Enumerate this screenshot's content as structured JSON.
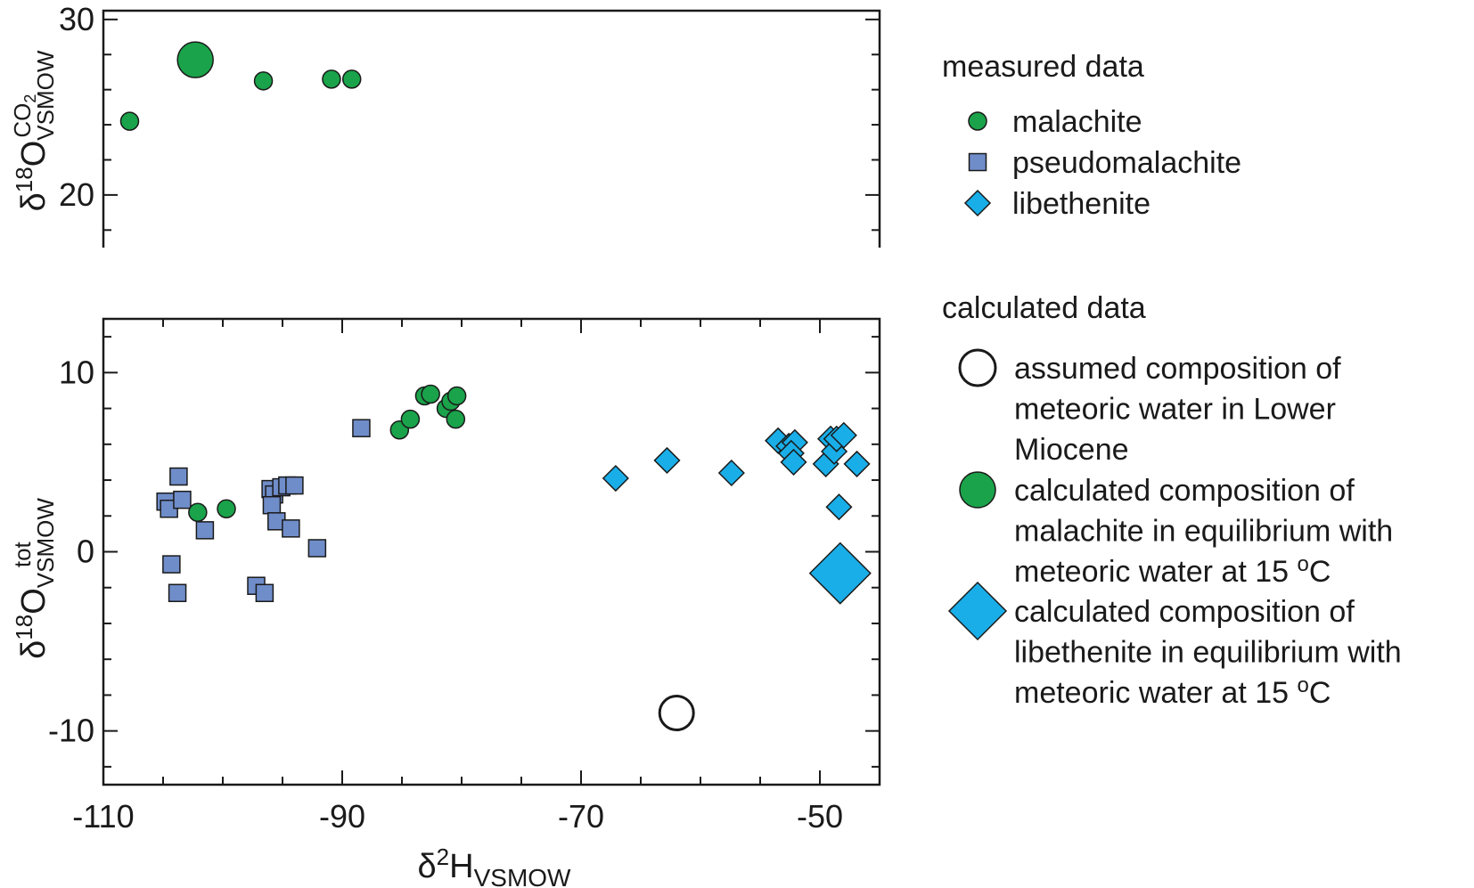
{
  "chart_data": {
    "type": "scatter",
    "colors": {
      "malachite": "#1aa34a",
      "pseudomalachite": "#6f8dc9",
      "libethenite": "#19aee8",
      "outline": "#1a1a1a",
      "open": "#ffffff"
    },
    "x_axis": {
      "label_base": "δ",
      "label_sup": "2",
      "label_main": "H",
      "label_sub": "VSMOW",
      "xlim": [
        -110,
        -45
      ],
      "ticks": [
        "-110",
        "-90",
        "-70",
        "-50"
      ]
    },
    "panels": [
      {
        "name": "measured-co2",
        "ylabel_base": "δ",
        "ylabel_sup": "18",
        "ylabel_main": "O",
        "ylabel_sub": "VSMOW",
        "ylabel_sup2": "CO2",
        "ylim": [
          17,
          30.5
        ],
        "ticks": [
          "20",
          "30"
        ],
        "series": [
          {
            "key": "malachite",
            "shape": "circle",
            "points": [
              {
                "x": -107.8,
                "y": 24.2,
                "size": "small"
              },
              {
                "x": -102.3,
                "y": 27.7,
                "size": "large"
              },
              {
                "x": -96.6,
                "y": 26.5,
                "size": "small"
              },
              {
                "x": -90.9,
                "y": 26.6,
                "size": "small"
              },
              {
                "x": -89.2,
                "y": 26.6,
                "size": "small"
              }
            ]
          }
        ]
      },
      {
        "name": "total",
        "ylabel_base": "δ",
        "ylabel_sup": "18",
        "ylabel_main": "O",
        "ylabel_sub": "VSMOW",
        "ylabel_sup2": "tot",
        "ylim": [
          -13,
          13
        ],
        "ticks": [
          "-10",
          "0",
          "10"
        ],
        "series": [
          {
            "key": "pseudomalachite",
            "shape": "square",
            "points": [
              {
                "x": -104.8,
                "y": 2.8
              },
              {
                "x": -104.5,
                "y": 2.4
              },
              {
                "x": -103.4,
                "y": 2.9
              },
              {
                "x": -103.7,
                "y": 4.2
              },
              {
                "x": -104.3,
                "y": -0.7
              },
              {
                "x": -103.8,
                "y": -2.3
              },
              {
                "x": -101.5,
                "y": 1.2
              },
              {
                "x": -97.2,
                "y": -1.9
              },
              {
                "x": -96.5,
                "y": -2.3
              },
              {
                "x": -96.0,
                "y": 3.5
              },
              {
                "x": -95.7,
                "y": 3.2
              },
              {
                "x": -95.9,
                "y": 2.6
              },
              {
                "x": -95.5,
                "y": 1.7
              },
              {
                "x": -95.1,
                "y": 3.6
              },
              {
                "x": -94.6,
                "y": 3.7
              },
              {
                "x": -94.0,
                "y": 3.7
              },
              {
                "x": -94.3,
                "y": 1.3
              },
              {
                "x": -92.1,
                "y": 0.2
              },
              {
                "x": -88.4,
                "y": 6.9
              }
            ]
          },
          {
            "key": "malachite",
            "shape": "circle",
            "points": [
              {
                "x": -102.1,
                "y": 2.2,
                "size": "small"
              },
              {
                "x": -99.7,
                "y": 2.4,
                "size": "small"
              },
              {
                "x": -85.2,
                "y": 6.8,
                "size": "small"
              },
              {
                "x": -84.3,
                "y": 7.4,
                "size": "small"
              },
              {
                "x": -83.1,
                "y": 8.7,
                "size": "small"
              },
              {
                "x": -82.6,
                "y": 8.8,
                "size": "small"
              },
              {
                "x": -81.3,
                "y": 8.0,
                "size": "small"
              },
              {
                "x": -80.9,
                "y": 8.4,
                "size": "small"
              },
              {
                "x": -80.4,
                "y": 8.7,
                "size": "small"
              },
              {
                "x": -80.5,
                "y": 7.4,
                "size": "small"
              }
            ]
          },
          {
            "key": "libethenite",
            "shape": "diamond",
            "points": [
              {
                "x": -67.1,
                "y": 4.1,
                "size": "small"
              },
              {
                "x": -62.8,
                "y": 5.1,
                "size": "small"
              },
              {
                "x": -57.4,
                "y": 4.4,
                "size": "small"
              },
              {
                "x": -53.5,
                "y": 6.2,
                "size": "small"
              },
              {
                "x": -52.6,
                "y": 5.9,
                "size": "small"
              },
              {
                "x": -52.1,
                "y": 6.1,
                "size": "small"
              },
              {
                "x": -52.4,
                "y": 5.5,
                "size": "small"
              },
              {
                "x": -52.2,
                "y": 5.0,
                "size": "small"
              },
              {
                "x": -49.5,
                "y": 4.9,
                "size": "small"
              },
              {
                "x": -49.1,
                "y": 6.3,
                "size": "small"
              },
              {
                "x": -48.8,
                "y": 5.6,
                "size": "small"
              },
              {
                "x": -48.6,
                "y": 6.3,
                "size": "small"
              },
              {
                "x": -48.0,
                "y": 6.5,
                "size": "small"
              },
              {
                "x": -46.9,
                "y": 4.9,
                "size": "small"
              },
              {
                "x": -48.4,
                "y": 2.5,
                "size": "small"
              },
              {
                "x": -48.3,
                "y": -1.2,
                "size": "large"
              }
            ]
          },
          {
            "key": "meteoric",
            "shape": "open-circle",
            "points": [
              {
                "x": -62.0,
                "y": -9.0,
                "size": "large"
              }
            ]
          }
        ]
      }
    ],
    "legend": {
      "placement": "right",
      "measured_title": "measured data",
      "measured": [
        {
          "key": "malachite",
          "shape": "circle",
          "label": "malachite"
        },
        {
          "key": "pseudomalachite",
          "shape": "square",
          "label": "pseudomalachite"
        },
        {
          "key": "libethenite",
          "shape": "diamond",
          "label": "libethenite"
        }
      ],
      "calculated_title": "calculated data",
      "calculated": [
        {
          "key": "meteoric",
          "shape": "open-circle",
          "lines": [
            "assumed composition of",
            "meteoric water in Lower",
            "Miocene"
          ]
        },
        {
          "key": "malachite",
          "shape": "circle",
          "lines": [
            "calculated composition of",
            "malachite in equilibrium with",
            "meteoric water at 15 ",
            "C"
          ]
        },
        {
          "key": "libethenite",
          "shape": "diamond",
          "lines": [
            "calculated composition of",
            "libethenite in equilibrium with",
            "meteoric water at 15 ",
            "C"
          ]
        }
      ],
      "degree_sup": "o"
    }
  }
}
